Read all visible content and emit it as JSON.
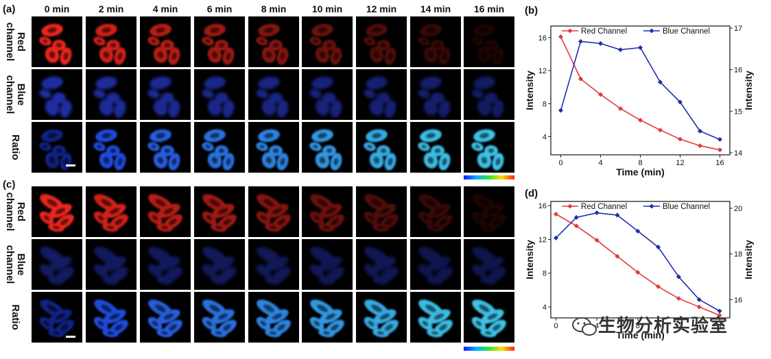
{
  "figure": {
    "panel_labels": [
      "(a)",
      "(b)",
      "(c)",
      "(d)"
    ],
    "time_labels": [
      "0 min",
      "2 min",
      "4 min",
      "6 min",
      "8 min",
      "10 min",
      "12 min",
      "14 min",
      "16 min"
    ],
    "row_labels": [
      [
        "Red",
        "channel"
      ],
      [
        "Blue",
        "channel"
      ],
      [
        "Ratio"
      ]
    ],
    "colors": {
      "red_signal": "#e8261e",
      "blue_signal": "#2a3cd8",
      "ratio_low": "#1f3df0",
      "ratio_high": "#44d7ff",
      "red_series": "#e23a3a",
      "blue_series": "#1e2fa8",
      "tile_background": "#000000"
    },
    "watermark_text": "生物分析实验室",
    "watermark_icon": "wechat-icon"
  },
  "chart_data": [
    {
      "panel": "(b)",
      "type": "line",
      "xlabel": "Time (min)",
      "ylabel_left": "Intensity",
      "ylabel_right": "Intensity",
      "x": [
        0,
        2,
        4,
        6,
        8,
        10,
        12,
        14,
        16
      ],
      "x_ticks": [
        0,
        4,
        8,
        12,
        16
      ],
      "xlim": [
        -1,
        17
      ],
      "y_left_ticks": [
        4,
        8,
        12,
        16
      ],
      "y_left_lim": [
        1.8,
        17.4
      ],
      "y_right_ticks": [
        14,
        15,
        16,
        17
      ],
      "y_right_lim": [
        13.95,
        17.05
      ],
      "legend_position": "top",
      "series": [
        {
          "name": "Red Channel",
          "axis": "left",
          "values": [
            16.1,
            11.0,
            9.1,
            7.4,
            6.0,
            4.8,
            3.7,
            2.9,
            2.4
          ]
        },
        {
          "name": "Blue Channel",
          "axis": "right",
          "values": [
            15.02,
            16.68,
            16.63,
            16.48,
            16.53,
            15.7,
            15.22,
            14.52,
            14.32
          ]
        }
      ]
    },
    {
      "panel": "(d)",
      "type": "line",
      "xlabel": "Time (min)",
      "ylabel_left": "Intensity",
      "ylabel_right": "Intensity",
      "x": [
        0,
        2,
        4,
        6,
        8,
        10,
        12,
        14,
        16
      ],
      "x_ticks": [
        0,
        4,
        8,
        12,
        16
      ],
      "xlim": [
        -0.5,
        17
      ],
      "y_left_ticks": [
        4,
        8,
        12,
        16
      ],
      "y_left_lim": [
        2.7,
        16.5
      ],
      "y_right_ticks": [
        16,
        18,
        20
      ],
      "y_right_lim": [
        15.2,
        20.3
      ],
      "legend_position": "top",
      "series": [
        {
          "name": "Red Channel",
          "axis": "left",
          "values": [
            15.0,
            13.6,
            11.9,
            10.0,
            8.1,
            6.4,
            5.0,
            4.0,
            3.0
          ]
        },
        {
          "name": "Blue Channel",
          "axis": "right",
          "values": [
            18.7,
            19.6,
            19.8,
            19.7,
            19.0,
            18.3,
            17.0,
            16.0,
            15.5
          ]
        }
      ]
    }
  ]
}
